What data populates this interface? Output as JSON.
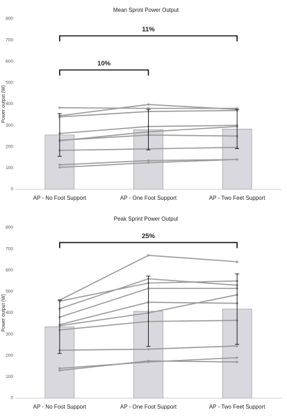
{
  "chart_data": [
    {
      "type": "bar",
      "title": "Mean Sprint Power Output",
      "ylabel": "Power output (W)",
      "categories": [
        "AP - No Foot Support",
        "AP - One Foot Support",
        "AP - Two Feet Support"
      ],
      "values": [
        255,
        280,
        283
      ],
      "errors": [
        100,
        95,
        92
      ],
      "color": "#d9d8df",
      "ylim": [
        0,
        800
      ],
      "yticks": [
        0,
        100,
        200,
        300,
        400,
        500,
        600,
        700,
        800
      ],
      "line_color": "#999999",
      "subject_lines": [
        {
          "values": [
            383,
            380,
            380
          ]
        },
        {
          "values": [
            345,
            398,
            375
          ]
        },
        {
          "values": [
            340,
            365,
            370
          ]
        },
        {
          "values": [
            262,
            295,
            300
          ]
        },
        {
          "values": [
            228,
            270,
            295
          ]
        },
        {
          "values": [
            230,
            255,
            250
          ]
        },
        {
          "values": [
            183,
            190,
            197
          ]
        },
        {
          "values": [
            115,
            135,
            140
          ]
        },
        {
          "values": [
            103,
            125,
            140
          ]
        }
      ],
      "annotations": [
        {
          "text": "11%",
          "from": 0,
          "to": 2,
          "y": 720
        },
        {
          "text": "10%",
          "from": 0,
          "to": 1,
          "y": 560
        }
      ]
    },
    {
      "type": "bar",
      "title": "Peak Sprint Power Output",
      "ylabel": "Power output (W)",
      "categories": [
        "AP - No Foot Support",
        "AP - One Foot Support",
        "AP - Two Feet Support"
      ],
      "values": [
        335,
        408,
        418
      ],
      "errors": [
        125,
        165,
        165
      ],
      "color": "#d9d8df",
      "ylim": [
        0,
        800
      ],
      "yticks": [
        0,
        100,
        200,
        300,
        400,
        500,
        600,
        700,
        800
      ],
      "line_color": "#999999",
      "subject_lines": [
        {
          "values": [
            460,
            670,
            640
          ]
        },
        {
          "values": [
            455,
            540,
            550
          ]
        },
        {
          "values": [
            420,
            560,
            530
          ]
        },
        {
          "values": [
            380,
            515,
            515
          ]
        },
        {
          "values": [
            345,
            450,
            445
          ]
        },
        {
          "values": [
            340,
            400,
            485
          ]
        },
        {
          "values": [
            320,
            360,
            365
          ]
        },
        {
          "values": [
            225,
            230,
            245
          ]
        },
        {
          "values": [
            140,
            170,
            190
          ]
        },
        {
          "values": [
            130,
            175,
            170
          ]
        }
      ],
      "annotations": [
        {
          "text": "25%",
          "from": 0,
          "to": 2,
          "y": 730
        }
      ]
    }
  ]
}
